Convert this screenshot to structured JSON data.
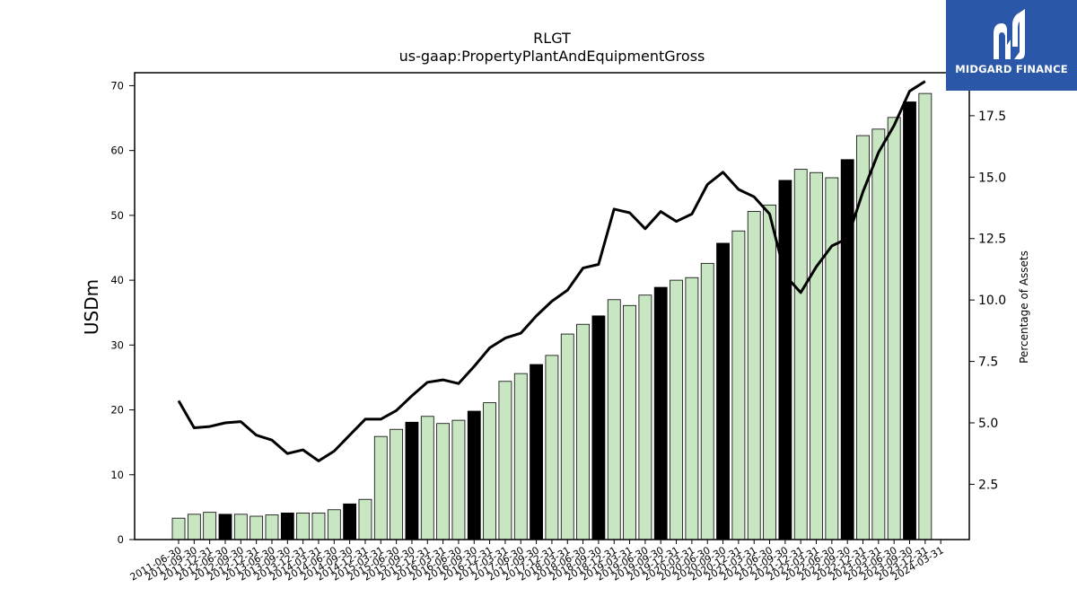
{
  "logo": {
    "text": "MIDGARD FINANCE",
    "color": "#2a57a8"
  },
  "chart_data": {
    "type": "bar",
    "title": "RLGT",
    "subtitle": "us-gaap:PropertyPlantAndEquipmentGross",
    "ylabel": "USDm",
    "y2label": "Percentage of Assets",
    "ylim": [
      0,
      72
    ],
    "y2lim": [
      0.25,
      19.25
    ],
    "yticks": [
      0,
      10,
      20,
      30,
      40,
      50,
      60,
      70
    ],
    "y2ticks": [
      2.5,
      5.0,
      7.5,
      10.0,
      12.5,
      15.0,
      17.5
    ],
    "colors": {
      "bar": "#c9e6c3",
      "bar_highlight": "#000000",
      "line": "#000000"
    },
    "categories": [
      "2011-06-30",
      "2011-09-30",
      "2011-12-31",
      "2012-06-30",
      "2012-09-30",
      "2012-12-31",
      "2013-06-30",
      "2013-09-30",
      "2013-12-31",
      "2014-03-31",
      "2014-06-30",
      "2014-09-30",
      "2014-12-31",
      "2015-03-31",
      "2015-06-30",
      "2015-09-30",
      "2015-12-31",
      "2016-03-31",
      "2016-06-30",
      "2016-09-30",
      "2016-12-31",
      "2017-03-31",
      "2017-06-30",
      "2017-09-30",
      "2017-12-31",
      "2018-03-31",
      "2018-06-30",
      "2018-09-30",
      "2018-12-31",
      "2019-03-31",
      "2019-06-30",
      "2019-09-30",
      "2019-12-31",
      "2020-03-31",
      "2020-06-30",
      "2020-09-30",
      "2020-12-31",
      "2021-03-31",
      "2021-06-30",
      "2021-09-30",
      "2021-12-31",
      "2022-03-31",
      "2022-06-30",
      "2022-09-30",
      "2022-12-31",
      "2023-03-31",
      "2023-06-30",
      "2023-09-30",
      "2023-12-31",
      "2024-03-31"
    ],
    "series": [
      {
        "type": "bar",
        "values": [
          3.3,
          3.9,
          4.2,
          3.9,
          3.9,
          3.6,
          3.8,
          4.1,
          4.1,
          4.1,
          4.6,
          5.5,
          6.2,
          15.9,
          17.0,
          18.1,
          19.0,
          17.9,
          18.4,
          19.8,
          21.1,
          24.4,
          25.6,
          27.0,
          28.4,
          31.7,
          33.2,
          34.5,
          37.0,
          36.1,
          37.7,
          38.9,
          40.0,
          40.4,
          42.6,
          45.7,
          47.6,
          50.6,
          51.6,
          55.4,
          57.1,
          56.6,
          55.8,
          58.6,
          62.3,
          63.3,
          65.1,
          67.5,
          68.8,
          0
        ],
        "highlight": [
          false,
          false,
          false,
          true,
          false,
          false,
          false,
          true,
          false,
          false,
          false,
          true,
          false,
          false,
          false,
          true,
          false,
          false,
          false,
          true,
          false,
          false,
          false,
          true,
          false,
          false,
          false,
          true,
          false,
          false,
          false,
          true,
          false,
          false,
          false,
          true,
          false,
          false,
          false,
          true,
          false,
          false,
          false,
          true,
          false,
          false,
          false,
          true,
          false,
          false
        ]
      },
      {
        "type": "line",
        "axis": "right",
        "values": [
          5.9,
          4.8,
          4.85,
          5.0,
          5.05,
          4.5,
          4.3,
          3.75,
          3.9,
          3.45,
          3.85,
          4.5,
          5.15,
          5.15,
          5.5,
          6.1,
          6.65,
          6.75,
          6.6,
          7.3,
          8.05,
          8.45,
          8.65,
          9.35,
          9.95,
          10.4,
          11.3,
          11.45,
          13.7,
          13.55,
          12.9,
          13.6,
          13.2,
          13.5,
          14.7,
          15.2,
          14.5,
          14.2,
          13.5,
          11.0,
          10.3,
          11.35,
          12.2,
          12.5,
          14.4,
          16.0,
          17.1,
          18.5,
          18.9,
          null
        ]
      }
    ]
  }
}
